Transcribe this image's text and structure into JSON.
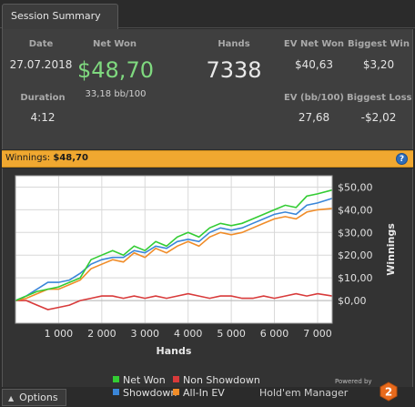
{
  "tab": {
    "label": "Session Summary"
  },
  "stats": {
    "date_label": "Date",
    "date_value": "27.07.2018",
    "net_won_label": "Net Won",
    "net_won_value": "$48,70",
    "net_won_bb": "33,18 bb/100",
    "hands_label": "Hands",
    "hands_value": "7338",
    "ev_net_won_label": "EV Net Won",
    "ev_net_won_value": "$40,63",
    "biggest_win_label": "Biggest Win",
    "biggest_win_value": "$3,20",
    "duration_label": "Duration",
    "duration_value": "4:12",
    "ev_bb_label": "EV (bb/100)",
    "ev_bb_value": "27,68",
    "biggest_loss_label": "Biggest Loss",
    "biggest_loss_value": "-$2,02"
  },
  "winnings_bar": {
    "label": "Winnings:",
    "value": "$48,70",
    "help_icon": "help-icon"
  },
  "chart_data": {
    "type": "line",
    "xlabel": "Hands",
    "ylabel": "Winnings",
    "xlim": [
      0,
      7338
    ],
    "ylim": [
      -10,
      55
    ],
    "x_ticks": [
      1000,
      2000,
      3000,
      4000,
      5000,
      6000,
      7000
    ],
    "x_tick_labels": [
      "1 000",
      "2 000",
      "3 000",
      "4 000",
      "5 000",
      "6 000",
      "7 000"
    ],
    "y_ticks": [
      0,
      10,
      20,
      30,
      40,
      50
    ],
    "y_tick_labels": [
      "$0,00",
      "$10,00",
      "$20,00",
      "$30,00",
      "$40,00",
      "$50,00"
    ],
    "grid": true,
    "legend_position": "bottom",
    "x": [
      0,
      250,
      500,
      750,
      1000,
      1250,
      1500,
      1750,
      2000,
      2250,
      2500,
      2750,
      3000,
      3250,
      3500,
      3750,
      4000,
      4250,
      4500,
      4750,
      5000,
      5250,
      5500,
      5750,
      6000,
      6250,
      6500,
      6750,
      7000,
      7338
    ],
    "series": [
      {
        "name": "Net Won",
        "color": "#33cc33",
        "values": [
          0,
          2,
          4,
          5,
          6,
          8,
          10,
          18,
          20,
          22,
          20,
          24,
          22,
          26,
          24,
          28,
          30,
          28,
          32,
          34,
          33,
          34,
          36,
          38,
          40,
          42,
          41,
          46,
          47,
          48.7
        ]
      },
      {
        "name": "Non Showdown",
        "color": "#d83a3a",
        "values": [
          0,
          0,
          -2,
          -4,
          -3,
          -2,
          0,
          1,
          2,
          2,
          1,
          2,
          1,
          2,
          1,
          2,
          3,
          2,
          1,
          2,
          2,
          1,
          1,
          2,
          1,
          2,
          3,
          2,
          3,
          2
        ]
      },
      {
        "name": "Showdown",
        "color": "#3a86d8",
        "values": [
          0,
          2,
          5,
          8,
          8,
          9,
          12,
          16,
          18,
          19,
          19,
          22,
          21,
          24,
          23,
          26,
          27,
          26,
          30,
          32,
          31,
          32,
          34,
          36,
          38,
          39,
          38,
          42,
          43,
          45
        ]
      },
      {
        "name": "All-In EV",
        "color": "#f08c28",
        "values": [
          0,
          1,
          3,
          5,
          5,
          7,
          9,
          14,
          16,
          18,
          17,
          21,
          19,
          23,
          21,
          24,
          26,
          24,
          28,
          30,
          29,
          30,
          32,
          34,
          36,
          37,
          36,
          39,
          40,
          40.6
        ]
      }
    ]
  },
  "bottom": {
    "options_label": "Options",
    "powered_by": "Powered by",
    "brand": "Hold'em Manager",
    "logo_text": "2"
  }
}
